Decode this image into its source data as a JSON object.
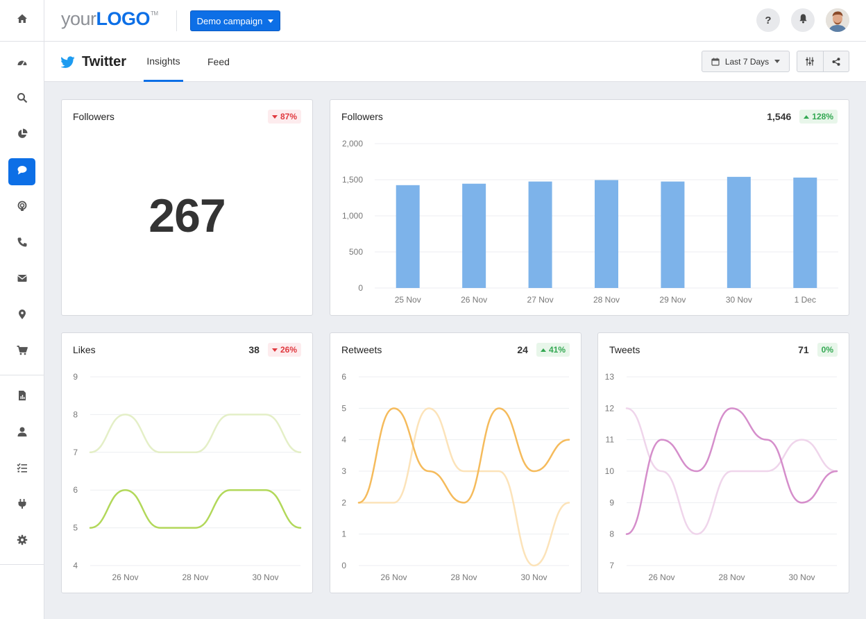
{
  "topbar": {
    "logo_your": "your",
    "logo_brand": "LOGO",
    "logo_tm": "TM",
    "campaign_label": "Demo campaign",
    "help_label": "?"
  },
  "sidebar": {
    "items": [
      {
        "icon": "home-icon"
      },
      {
        "icon": "dashboard-icon"
      },
      {
        "icon": "search-icon"
      },
      {
        "icon": "pie-chart-icon"
      },
      {
        "icon": "chat-bubble-icon",
        "active": true
      },
      {
        "icon": "podcast-icon"
      },
      {
        "icon": "phone-icon"
      },
      {
        "icon": "mail-icon"
      },
      {
        "icon": "map-pin-icon"
      },
      {
        "icon": "cart-icon"
      },
      {
        "icon": "report-icon"
      },
      {
        "icon": "user-icon"
      },
      {
        "icon": "checklist-icon"
      },
      {
        "icon": "plug-icon"
      },
      {
        "icon": "gear-icon"
      }
    ]
  },
  "subheader": {
    "title": "Twitter",
    "tabs": [
      {
        "label": "Insights",
        "active": true
      },
      {
        "label": "Feed",
        "active": false
      }
    ],
    "date_range": "Last 7 Days"
  },
  "colors": {
    "accent": "#0d6fe6",
    "bar": "#7db3ea",
    "likes_current": "#b2d85a",
    "likes_previous": "#e4efc7",
    "retweets_current": "#f5bb5c",
    "retweets_previous": "#fce3b9",
    "tweets_current": "#d58ecb",
    "tweets_previous": "#efd5eb"
  },
  "cards": {
    "followers_kpi": {
      "title": "Followers",
      "value": "267",
      "change": "87%",
      "direction": "down"
    },
    "followers_chart": {
      "title": "Followers",
      "total": "1,546",
      "change": "128%",
      "direction": "up"
    },
    "likes": {
      "title": "Likes",
      "total": "38",
      "change": "26%",
      "direction": "down"
    },
    "retweets": {
      "title": "Retweets",
      "total": "24",
      "change": "41%",
      "direction": "up"
    },
    "tweets": {
      "title": "Tweets",
      "total": "71",
      "change": "0%",
      "direction": "up"
    }
  },
  "chart_data": [
    {
      "id": "followers",
      "type": "bar",
      "categories": [
        "25 Nov",
        "26 Nov",
        "27 Nov",
        "28 Nov",
        "29 Nov",
        "30 Nov",
        "1 Dec"
      ],
      "values": [
        1425,
        1445,
        1475,
        1495,
        1475,
        1540,
        1530
      ],
      "ylim": [
        0,
        2000
      ],
      "yticks": [
        0,
        500,
        1000,
        1500,
        2000
      ],
      "ytick_labels": [
        "0",
        "500",
        "1,000",
        "1,500",
        "2,000"
      ],
      "grid": true
    },
    {
      "id": "likes",
      "type": "line",
      "x": [
        "25 Nov",
        "26 Nov",
        "27 Nov",
        "28 Nov",
        "29 Nov",
        "30 Nov",
        "1 Dec"
      ],
      "xtick_labels": [
        "26 Nov",
        "28 Nov",
        "30 Nov"
      ],
      "ylim": [
        4,
        9
      ],
      "yticks": [
        4,
        5,
        6,
        7,
        8,
        9
      ],
      "series": [
        {
          "values": [
            7,
            8,
            7,
            7,
            8,
            8,
            7
          ],
          "role": "previous"
        },
        {
          "values": [
            5,
            6,
            5,
            5,
            6,
            6,
            5
          ],
          "role": "current"
        }
      ],
      "grid": true
    },
    {
      "id": "retweets",
      "type": "line",
      "x": [
        "25 Nov",
        "26 Nov",
        "27 Nov",
        "28 Nov",
        "29 Nov",
        "30 Nov",
        "1 Dec"
      ],
      "xtick_labels": [
        "26 Nov",
        "28 Nov",
        "30 Nov"
      ],
      "ylim": [
        0,
        6
      ],
      "yticks": [
        0,
        1,
        2,
        3,
        4,
        5,
        6
      ],
      "series": [
        {
          "values": [
            2,
            2,
            5,
            3,
            3,
            0,
            2
          ],
          "role": "previous"
        },
        {
          "values": [
            2,
            5,
            3,
            2,
            5,
            3,
            4
          ],
          "role": "current"
        }
      ],
      "grid": true
    },
    {
      "id": "tweets",
      "type": "line",
      "x": [
        "25 Nov",
        "26 Nov",
        "27 Nov",
        "28 Nov",
        "29 Nov",
        "30 Nov",
        "1 Dec"
      ],
      "xtick_labels": [
        "26 Nov",
        "28 Nov",
        "30 Nov"
      ],
      "ylim": [
        7,
        13
      ],
      "yticks": [
        7,
        8,
        9,
        10,
        11,
        12,
        13
      ],
      "series": [
        {
          "values": [
            12,
            10,
            8,
            10,
            10,
            11,
            10
          ],
          "role": "previous"
        },
        {
          "values": [
            8,
            11,
            10,
            12,
            11,
            9,
            10
          ],
          "role": "current"
        }
      ],
      "grid": true
    }
  ]
}
